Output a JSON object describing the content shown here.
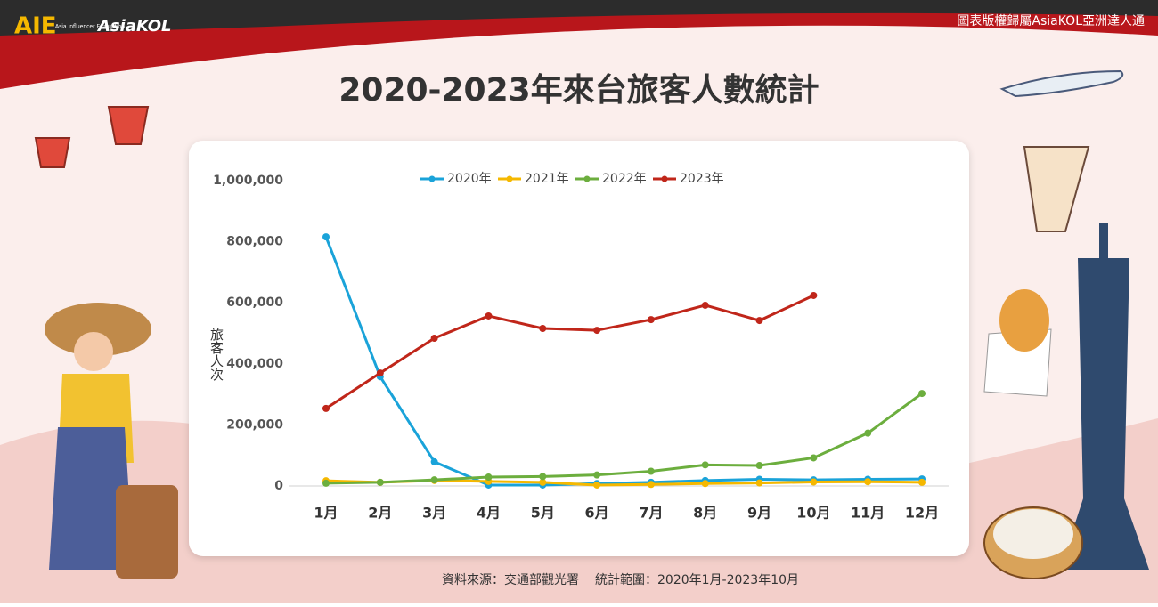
{
  "header": {
    "logo": "AIE",
    "logo_sub": "Asia Influencer Evaluation",
    "brand": "AsiaKOL",
    "copyright": "圖表版權歸屬AsiaKOL亞洲達人通"
  },
  "footer": {
    "source": "資料來源：交通部觀光署",
    "range": "統計範圍：2020年1月-2023年10月"
  },
  "chart_data": {
    "type": "line",
    "title": "2020-2023年來台旅客人數統計",
    "ylabel": "旅客人次",
    "categories": [
      "1月",
      "2月",
      "3月",
      "4月",
      "5月",
      "6月",
      "7月",
      "8月",
      "9月",
      "10月",
      "11月",
      "12月"
    ],
    "series": [
      {
        "name": "2020年",
        "color": "#1aa3d9",
        "values": [
          816000,
          358000,
          79000,
          3000,
          3000,
          8000,
          12000,
          18000,
          22000,
          20000,
          22000,
          23000
        ]
      },
      {
        "name": "2021年",
        "color": "#f5b800",
        "values": [
          17000,
          12000,
          18000,
          15000,
          12000,
          3000,
          5000,
          8000,
          10000,
          13000,
          14000,
          12000
        ]
      },
      {
        "name": "2022年",
        "color": "#6cae3e",
        "values": [
          9000,
          12000,
          20000,
          29000,
          31000,
          36000,
          48000,
          69000,
          67000,
          92000,
          173000,
          303000
        ]
      },
      {
        "name": "2023年",
        "color": "#c0261a",
        "values": [
          254000,
          370000,
          484000,
          557000,
          516000,
          510000,
          545000,
          592000,
          542000,
          624000,
          null,
          null
        ]
      }
    ],
    "ylim": [
      0,
      1000000
    ],
    "yticks": [
      0,
      {
        "value": 200000,
        "label": "200,000"
      },
      {
        "value": 400000,
        "label": "400,000"
      },
      {
        "value": 600000,
        "label": "600,000"
      },
      {
        "value": 800000,
        "label": "800,000"
      },
      {
        "value": 1000000,
        "label": "1,000,000"
      }
    ],
    "legend": "top"
  }
}
